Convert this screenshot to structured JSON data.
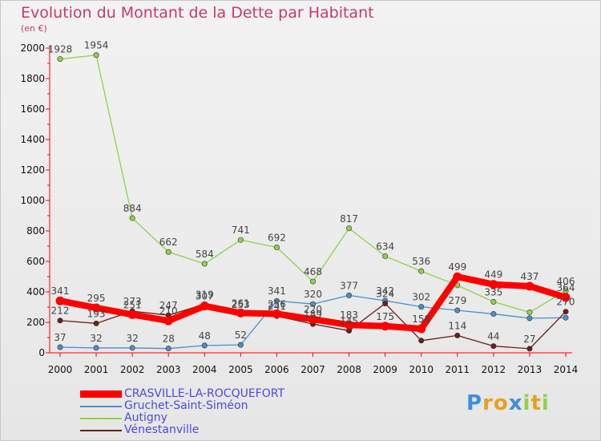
{
  "chart_data": {
    "type": "line",
    "title": "Evolution du Montant de la Dette par Habitant",
    "subtitle": "(en €)",
    "xlabel": "",
    "ylabel": "",
    "x": [
      "2000",
      "2001",
      "2002",
      "2003",
      "2004",
      "2005",
      "2006",
      "2007",
      "2008",
      "2009",
      "2010",
      "2011",
      "2012",
      "2013",
      "2014"
    ],
    "ylim": [
      0,
      2000
    ],
    "yticks": [
      0,
      200,
      400,
      600,
      800,
      1000,
      1200,
      1400,
      1600,
      1800,
      2000
    ],
    "ytick_labels": [
      "0",
      "200",
      "400",
      "600",
      "800",
      "1000",
      "1200",
      "1400",
      "1600",
      "1800",
      "2000"
    ],
    "grid": false,
    "legend_position": "bottom-left",
    "series": [
      {
        "name": "Gruchet-Saint-Siméon",
        "color": "#4a8ed0",
        "values": [
          37,
          32,
          32,
          28,
          48,
          52,
          341,
          320,
          377,
          342,
          302,
          279,
          255,
          227,
          230
        ],
        "labels": [
          "37",
          "32",
          "32",
          "28",
          "48",
          "52",
          "341",
          "320",
          "377",
          "342",
          "302",
          "279",
          "",
          "",
          ""
        ]
      },
      {
        "name": "Autigny",
        "color": "#8fd24a",
        "values": [
          1928,
          1954,
          884,
          662,
          584,
          741,
          692,
          468,
          817,
          634,
          536,
          443,
          335,
          266,
          406
        ],
        "labels": [
          "1928",
          "1954",
          "884",
          "662",
          "584",
          "741",
          "692",
          "468",
          "817",
          "634",
          "536",
          "",
          "335",
          "",
          "406"
        ]
      },
      {
        "name": "Vénestanville",
        "color": "#6b1e1e",
        "values": [
          212,
          193,
          273,
          247,
          319,
          253,
          241,
          189,
          145,
          324,
          80,
          114,
          44,
          27,
          270
        ],
        "labels": [
          "212",
          "193",
          "273",
          "247",
          "319",
          "253",
          "241",
          "189",
          "145",
          "324",
          "",
          "114",
          "44",
          "27",
          "270"
        ]
      },
      {
        "name": "CRASVILLE-LA-ROCQUEFORT",
        "color": "#ff0000",
        "values": [
          341,
          295,
          251,
          210,
          307,
          261,
          256,
          220,
          183,
          175,
          158,
          499,
          449,
          437,
          364
        ],
        "labels": [
          "341",
          "295",
          "251",
          "210",
          "307",
          "261",
          "256",
          "220",
          "183",
          "175",
          "158",
          "499",
          "449",
          "437",
          "364"
        ]
      }
    ],
    "legend": [
      {
        "name": "CRASVILLE-LA-ROCQUEFORT",
        "color": "#ff0000"
      },
      {
        "name": "Gruchet-Saint-Siméon",
        "color": "#4a8ed0"
      },
      {
        "name": "Autigny",
        "color": "#8fd24a"
      },
      {
        "name": "Vénestanville",
        "color": "#6b1e1e"
      }
    ]
  },
  "logo": {
    "letters": [
      "P",
      "r",
      "o",
      "x",
      "i",
      "t",
      "i"
    ],
    "colors": [
      "#3e8de0",
      "#e8a020",
      "#e8a020",
      "#3e8de0",
      "#8fd24a",
      "#e8a020",
      "#8fd24a"
    ]
  }
}
